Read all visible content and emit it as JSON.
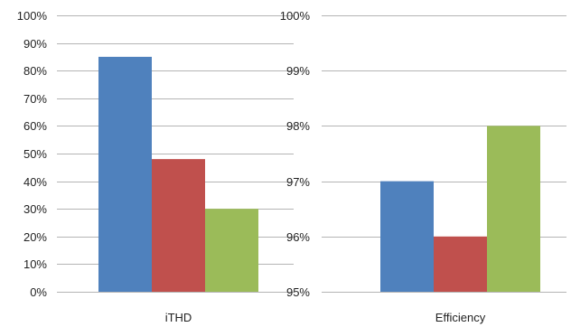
{
  "chart_data": [
    {
      "type": "bar",
      "categories": [
        "iTHD"
      ],
      "series": [
        {
          "values": [
            85
          ],
          "color": "#4f81bd"
        },
        {
          "values": [
            48
          ],
          "color": "#c0504d"
        },
        {
          "values": [
            30
          ],
          "color": "#9bbb59"
        }
      ],
      "ylim": [
        0,
        100
      ],
      "yticks": [
        0,
        10,
        20,
        30,
        40,
        50,
        60,
        70,
        80,
        90,
        100
      ],
      "ytick_labels": [
        "0%",
        "10%",
        "20%",
        "30%",
        "40%",
        "50%",
        "60%",
        "70%",
        "80%",
        "90%",
        "100%"
      ],
      "grid": true,
      "legend": "none"
    },
    {
      "type": "bar",
      "categories": [
        "Efficiency"
      ],
      "series": [
        {
          "values": [
            97
          ],
          "color": "#4f81bd"
        },
        {
          "values": [
            96
          ],
          "color": "#c0504d"
        },
        {
          "values": [
            98
          ],
          "color": "#9bbb59"
        }
      ],
      "ylim": [
        95,
        100
      ],
      "yticks": [
        95,
        96,
        97,
        98,
        99,
        100
      ],
      "ytick_labels": [
        "95%",
        "96%",
        "97%",
        "98%",
        "99%",
        "100%"
      ],
      "grid": true,
      "legend": "none"
    }
  ]
}
